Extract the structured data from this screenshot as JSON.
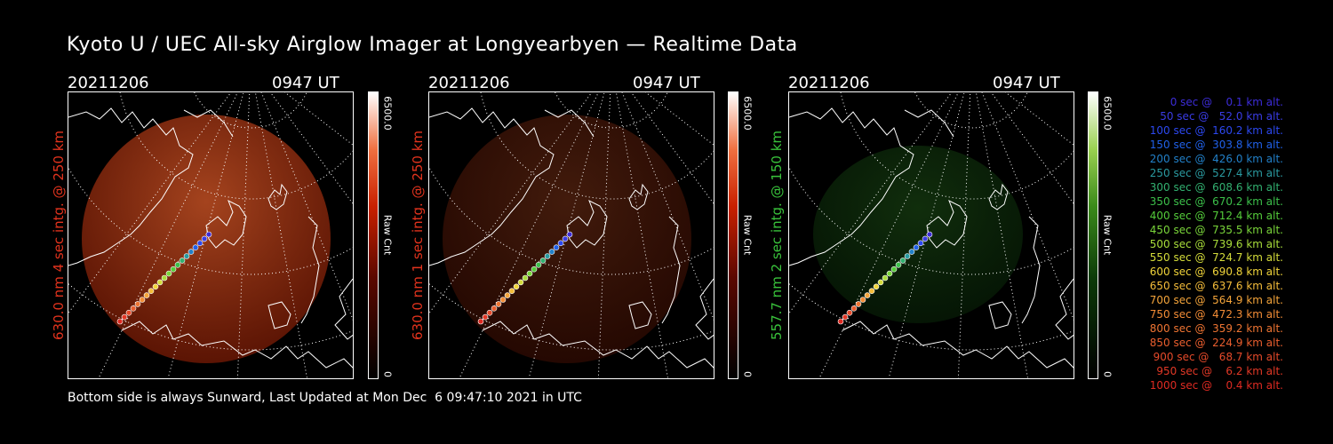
{
  "title": "Kyoto U / UEC All-sky Airglow Imager at Longyearbyen — Realtime Data",
  "footer": "Bottom side is always Sunward, Last Updated at Mon Dec  6 09:47:10 2021 in UTC",
  "colors": {
    "red_channel": "#e2331d",
    "green_channel": "#39c23b"
  },
  "panels": [
    {
      "date": "20211206",
      "time": "0947 UT",
      "ylabel": "630.0 nm 4 sec intg. @ 250 km",
      "ylabel_color": "#e2331d",
      "colorbar_max": "6500.0",
      "colorbar_min": "0",
      "colorbar_label": "Raw Cnt",
      "colormap": "red",
      "intensity": 0.75
    },
    {
      "date": "20211206",
      "time": "0947 UT",
      "ylabel": "630.0 nm 1 sec intg. @ 250 km",
      "ylabel_color": "#e2331d",
      "colorbar_max": "6500.0",
      "colorbar_min": "0",
      "colorbar_label": "Raw Cnt",
      "colormap": "red",
      "intensity": 0.3
    },
    {
      "date": "20211206",
      "time": "0947 UT",
      "ylabel": "557.7 nm 2 sec intg. @ 150 km",
      "ylabel_color": "#39c23b",
      "colorbar_max": "6500.0",
      "colorbar_min": "0",
      "colorbar_label": "Raw Cnt",
      "colormap": "green",
      "intensity": 0.3
    }
  ],
  "legend": [
    {
      "text": "0 sec @    0.1 km alt.",
      "color": "#3c2cd8"
    },
    {
      "text": "50 sec @   52.0 km alt.",
      "color": "#3a3ce6"
    },
    {
      "text": "100 sec @  160.2 km alt.",
      "color": "#2c48f0"
    },
    {
      "text": "150 sec @  303.8 km alt.",
      "color": "#2060e8"
    },
    {
      "text": "200 sec @  426.0 km alt.",
      "color": "#2280c8"
    },
    {
      "text": "250 sec @  527.4 km alt.",
      "color": "#2a9aa0"
    },
    {
      "text": "300 sec @  608.6 km alt.",
      "color": "#32b070"
    },
    {
      "text": "350 sec @  670.2 km alt.",
      "color": "#3cc04a"
    },
    {
      "text": "400 sec @  712.4 km alt.",
      "color": "#54cc3a"
    },
    {
      "text": "450 sec @  735.5 km alt.",
      "color": "#7ad63a"
    },
    {
      "text": "500 sec @  739.6 km alt.",
      "color": "#a8dc3a"
    },
    {
      "text": "550 sec @  724.7 km alt.",
      "color": "#d4dc3a"
    },
    {
      "text": "600 sec @  690.8 km alt.",
      "color": "#f0d43a"
    },
    {
      "text": "650 sec @  637.6 km alt.",
      "color": "#f4bc3a"
    },
    {
      "text": "700 sec @  564.9 km alt.",
      "color": "#f4a43a"
    },
    {
      "text": "750 sec @  472.3 km alt.",
      "color": "#f28c36"
    },
    {
      "text": "800 sec @  359.2 km alt.",
      "color": "#ee7432"
    },
    {
      "text": "850 sec @  224.9 km alt.",
      "color": "#ea5e2e"
    },
    {
      "text": "900 sec @   68.7 km alt.",
      "color": "#e64a2a"
    },
    {
      "text": "950 sec @    6.2 km alt.",
      "color": "#e23826"
    },
    {
      "text": "1000 sec @    0.4 km alt.",
      "color": "#de2a22"
    }
  ]
}
